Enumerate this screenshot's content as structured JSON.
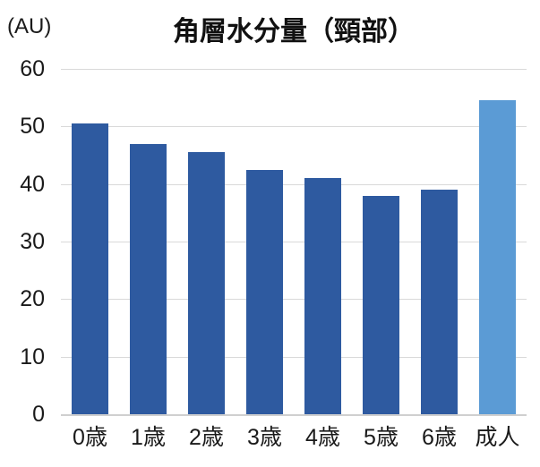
{
  "chart": {
    "title": "角層水分量（頸部）",
    "unit_label": "(AU)"
  },
  "chart_data": {
    "type": "bar",
    "title": "角層水分量（頸部）",
    "ylabel": "(AU)",
    "xlabel": "",
    "categories": [
      "0歳",
      "1歳",
      "2歳",
      "3歳",
      "4歳",
      "5歳",
      "6歳",
      "成人"
    ],
    "values": [
      50.5,
      47,
      45.5,
      42.5,
      41,
      38,
      39,
      54.5
    ],
    "ylim": [
      0,
      60
    ],
    "ytick_step": 10,
    "grid": true,
    "legend": false,
    "colors": {
      "bar_default": "#2e5aa0",
      "bar_highlight": "#5b9bd5",
      "gridline": "#d9d9d9",
      "axis_line": "#cfcfcf",
      "text": "#1a1a1a"
    },
    "highlight_index": 7
  }
}
